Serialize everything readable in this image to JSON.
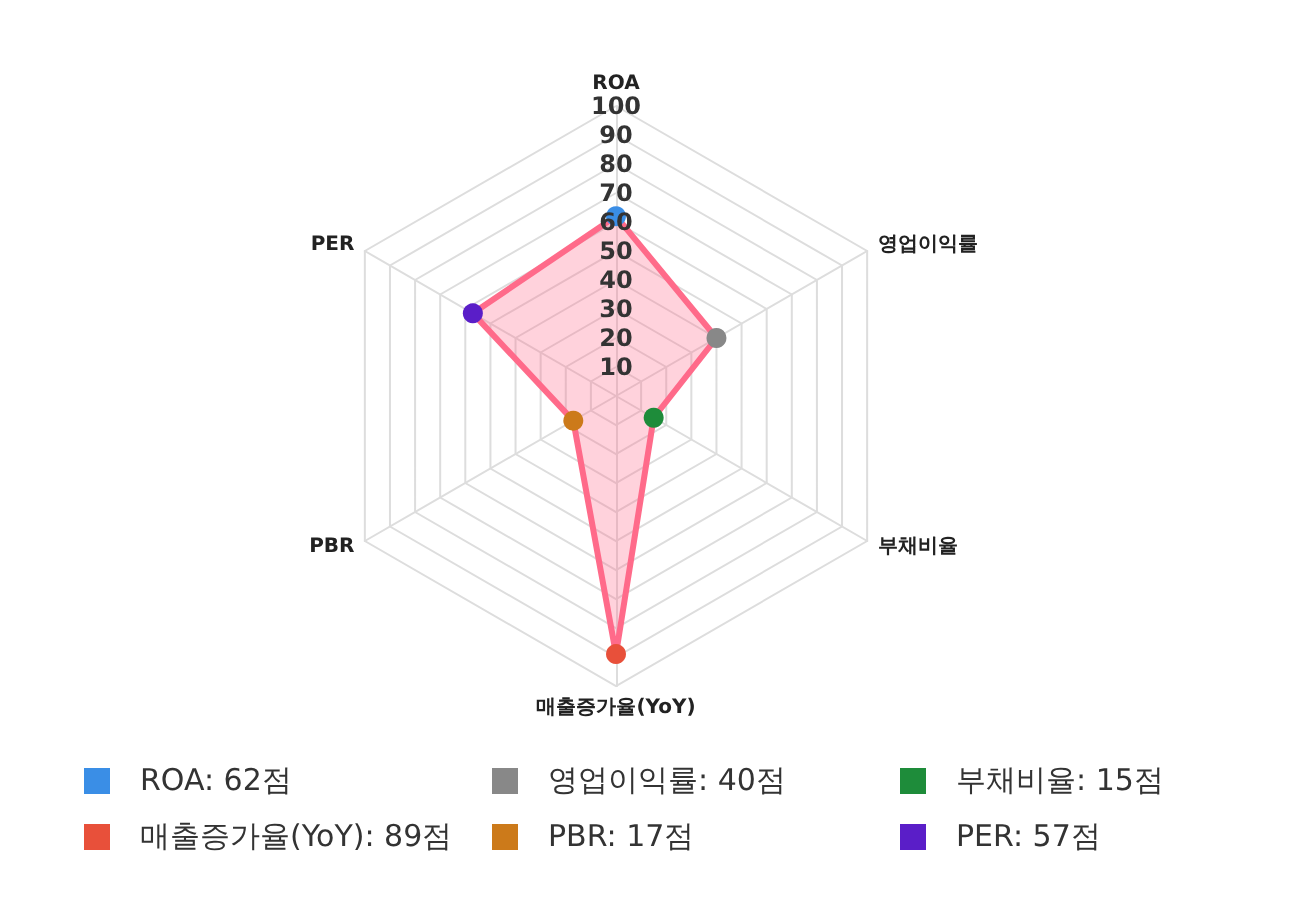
{
  "chart_data": {
    "type": "radar",
    "categories": [
      "ROA",
      "영업이익률",
      "부채비율",
      "매출증가율(YoY)",
      "PBR",
      "PER"
    ],
    "series": [
      {
        "color": "#ff6b8a",
        "values": [
          62,
          40,
          15,
          89,
          17,
          57
        ]
      }
    ],
    "colors": [
      "#3a8ee6",
      "#888888",
      "#1e8c3a",
      "#e8503a",
      "#cc7a1a",
      "#5a1ec8"
    ],
    "value_labels": [
      "ROA: 62점",
      "영업이익률: 40점",
      "부채비율: 15점",
      "매출증가율(YoY): 89점",
      "PBR: 17점",
      "PER: 57점"
    ],
    "ylim": [
      0,
      100
    ],
    "yticks": [
      10,
      20,
      30,
      40,
      50,
      60,
      70,
      80,
      90,
      100
    ],
    "grid": true,
    "marker": "circle",
    "line_style": "solid"
  }
}
